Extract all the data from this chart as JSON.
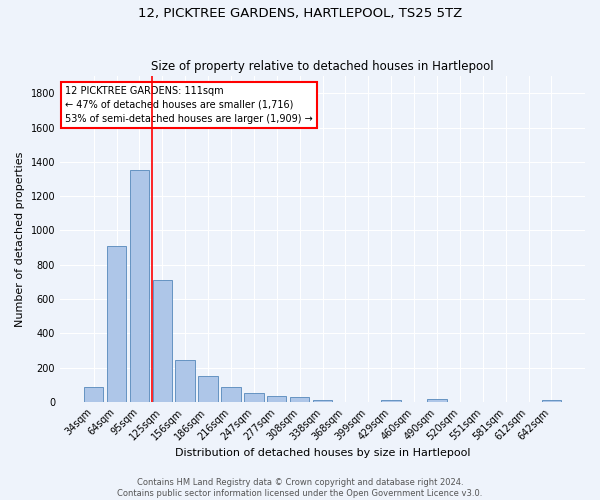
{
  "title": "12, PICKTREE GARDENS, HARTLEPOOL, TS25 5TZ",
  "subtitle": "Size of property relative to detached houses in Hartlepool",
  "xlabel": "Distribution of detached houses by size in Hartlepool",
  "ylabel": "Number of detached properties",
  "categories": [
    "34sqm",
    "64sqm",
    "95sqm",
    "125sqm",
    "156sqm",
    "186sqm",
    "216sqm",
    "247sqm",
    "277sqm",
    "308sqm",
    "338sqm",
    "368sqm",
    "399sqm",
    "429sqm",
    "460sqm",
    "490sqm",
    "520sqm",
    "551sqm",
    "581sqm",
    "612sqm",
    "642sqm"
  ],
  "values": [
    85,
    910,
    1355,
    710,
    248,
    150,
    85,
    55,
    35,
    30,
    15,
    0,
    0,
    15,
    0,
    20,
    0,
    0,
    0,
    0,
    10
  ],
  "bar_color": "#aec6e8",
  "bar_edge_color": "#5588bb",
  "vline_x": 2.53,
  "vline_color": "red",
  "annotation_text": "12 PICKTREE GARDENS: 111sqm\n← 47% of detached houses are smaller (1,716)\n53% of semi-detached houses are larger (1,909) →",
  "annotation_box_color": "white",
  "annotation_box_edge": "red",
  "ylim": [
    0,
    1900
  ],
  "yticks": [
    0,
    200,
    400,
    600,
    800,
    1000,
    1200,
    1400,
    1600,
    1800
  ],
  "background_color": "#eef3fb",
  "grid_color": "white",
  "footer_line1": "Contains HM Land Registry data © Crown copyright and database right 2024.",
  "footer_line2": "Contains public sector information licensed under the Open Government Licence v3.0.",
  "title_fontsize": 9.5,
  "subtitle_fontsize": 8.5,
  "label_fontsize": 8,
  "tick_fontsize": 7,
  "annotation_fontsize": 7,
  "footer_fontsize": 6
}
